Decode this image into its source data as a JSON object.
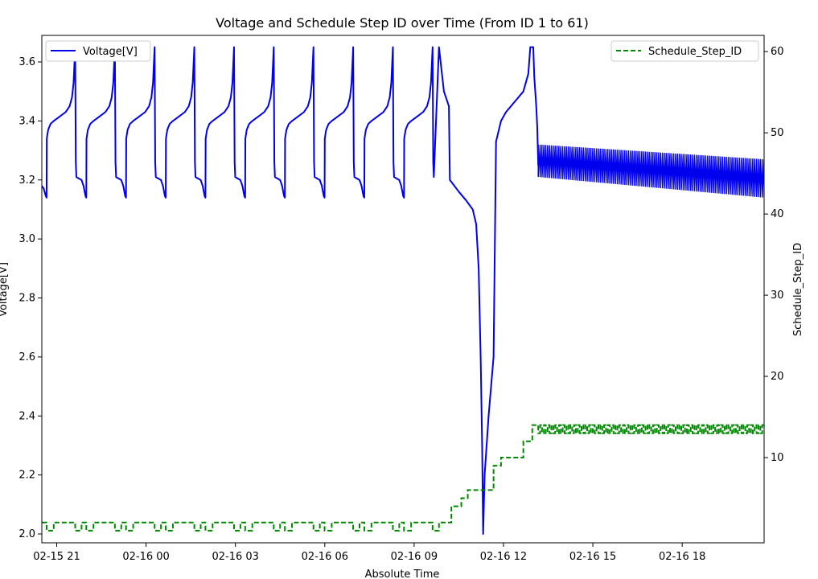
{
  "chart_data": {
    "type": "line",
    "title": "Voltage and Schedule Step ID over Time (From ID 1 to 61)",
    "xlabel": "Absolute Time",
    "ylabel_left": "Voltage[V]",
    "ylabel_right": "Schedule_Step_ID",
    "x_range": [
      "2015-02-15 20:30",
      "2015-02-16 20:45"
    ],
    "x_ticks": [
      "02-15 21",
      "02-16 00",
      "02-16 03",
      "02-16 06",
      "02-16 09",
      "02-16 12",
      "02-16 15",
      "02-16 18"
    ],
    "y_left_range": [
      1.97,
      3.69
    ],
    "y_left_ticks": [
      "2.0",
      "2.2",
      "2.4",
      "2.6",
      "2.8",
      "3.0",
      "3.2",
      "3.4",
      "3.6"
    ],
    "y_right_range": [
      -0.5,
      62
    ],
    "y_right_ticks": [
      "10",
      "20",
      "30",
      "40",
      "50",
      "60"
    ],
    "grid": false,
    "legend_left": {
      "label": "Voltage[V]",
      "placement": "upper-left"
    },
    "legend_right": {
      "label": "Schedule_Step_ID",
      "placement": "upper-right"
    },
    "colors": {
      "voltage": "#0000ee",
      "step": "#008800"
    },
    "series": [
      {
        "name": "Voltage[V]",
        "axis": "left",
        "style": "solid",
        "cycles": [
          {
            "start": "2015-02-15 20:30",
            "v_start": 3.18
          },
          {
            "start": "2015-02-15 21:50",
            "v_start": 3.2
          },
          {
            "start": "2015-02-15 23:10",
            "v_start": 3.2
          },
          {
            "start": "2015-02-16 00:30",
            "v_start": 3.2
          },
          {
            "start": "2015-02-16 01:50",
            "v_start": 3.2
          },
          {
            "start": "2015-02-16 03:10",
            "v_start": 3.2
          },
          {
            "start": "2015-02-16 04:30",
            "v_start": 3.2
          },
          {
            "start": "2015-02-16 05:50",
            "v_start": 3.2
          },
          {
            "start": "2015-02-16 07:10",
            "v_start": 3.2
          },
          {
            "start": "2015-02-16 08:30",
            "v_start": 3.2
          }
        ],
        "cycle_shape": {
          "v_trough": 3.14,
          "v_knee": 3.34,
          "v_plateau_start": 3.4,
          "v_plateau_end": 3.45,
          "v_peak": 3.65
        },
        "discharge_points": [
          [
            "2015-02-16 09:50",
            3.65
          ],
          [
            "2015-02-16 10:00",
            3.5
          ],
          [
            "2015-02-16 10:10",
            3.45
          ],
          [
            "2015-02-16 10:12",
            3.2
          ],
          [
            "2015-02-16 10:30",
            3.16
          ],
          [
            "2015-02-16 10:45",
            3.13
          ],
          [
            "2015-02-16 10:58",
            3.1
          ],
          [
            "2015-02-16 11:05",
            3.05
          ],
          [
            "2015-02-16 11:10",
            2.9
          ],
          [
            "2015-02-16 11:14",
            2.6
          ],
          [
            "2015-02-16 11:17",
            2.3
          ],
          [
            "2015-02-16 11:19",
            2.0
          ],
          [
            "2015-02-16 11:22",
            2.2
          ],
          [
            "2015-02-16 11:30",
            2.4
          ],
          [
            "2015-02-16 11:38",
            2.56
          ],
          [
            "2015-02-16 11:40",
            2.6
          ],
          [
            "2015-02-16 11:45",
            3.33
          ],
          [
            "2015-02-16 11:55",
            3.4
          ],
          [
            "2015-02-16 12:05",
            3.43
          ],
          [
            "2015-02-16 12:25",
            3.47
          ],
          [
            "2015-02-16 12:40",
            3.5
          ],
          [
            "2015-02-16 12:50",
            3.56
          ],
          [
            "2015-02-16 12:54",
            3.65
          ],
          [
            "2015-02-16 13:00",
            3.65
          ],
          [
            "2015-02-16 13:02",
            3.55
          ],
          [
            "2015-02-16 13:06",
            3.45
          ],
          [
            "2015-02-16 13:08",
            3.38
          ],
          [
            "2015-02-16 13:10",
            3.25
          ]
        ],
        "pulse_segment": {
          "start": "2015-02-16 13:10",
          "end": "2015-02-16 20:45",
          "high_start": 3.32,
          "high_end": 3.27,
          "low_start": 3.21,
          "low_end": 3.14,
          "pulse_count": 120
        }
      },
      {
        "name": "Schedule_Step_ID",
        "axis": "right",
        "style": "dashed",
        "early_cycle_steps": [
          2,
          1,
          2,
          1
        ],
        "steps": [
          [
            "2015-02-16 09:50",
            2
          ],
          [
            "2015-02-16 10:15",
            4
          ],
          [
            "2015-02-16 10:35",
            5
          ],
          [
            "2015-02-16 10:48",
            6
          ],
          [
            "2015-02-16 11:40",
            9
          ],
          [
            "2015-02-16 11:55",
            10
          ],
          [
            "2015-02-16 12:40",
            12
          ],
          [
            "2015-02-16 12:58",
            14
          ]
        ],
        "pulse_segment": {
          "start": "2015-02-16 13:10",
          "end": "2015-02-16 20:45",
          "values": [
            13,
            14
          ],
          "pulse_count": 120
        }
      }
    ]
  }
}
